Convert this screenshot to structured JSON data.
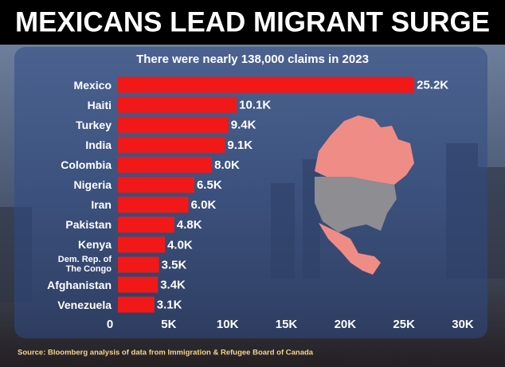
{
  "chart_data": {
    "type": "bar",
    "orientation": "horizontal",
    "title": "MEXICANS LEAD MIGRANT SURGE",
    "subtitle": "There were nearly 138,000 claims in 2023",
    "categories": [
      "Mexico",
      "Haiti",
      "Turkey",
      "India",
      "Colombia",
      "Nigeria",
      "Iran",
      "Pakistan",
      "Kenya",
      "Dem. Rep. of The Congo",
      "Afghanistan",
      "Venezuela"
    ],
    "values": [
      25200,
      10100,
      9400,
      9100,
      8000,
      6500,
      6000,
      4800,
      4000,
      3500,
      3400,
      3100
    ],
    "value_labels": [
      "25.2K",
      "10.1K",
      "9.4K",
      "9.1K",
      "8.0K",
      "6.5K",
      "6.0K",
      "4.8K",
      "4.0K",
      "3.5K",
      "3.4K",
      "3.1K"
    ],
    "color": "#f21818",
    "xlim": [
      0,
      30000
    ],
    "xticks": [
      0,
      {
        "value": 5000,
        "label": "5K"
      },
      {
        "value": 10000,
        "label": "10K"
      },
      {
        "value": 15000,
        "label": "15K"
      },
      {
        "value": 20000,
        "label": "20K"
      },
      {
        "value": 25000,
        "label": "25K"
      },
      {
        "value": 30000,
        "label": "30K"
      }
    ],
    "source": "Source: Bloomberg analysis of data from Immigration & Refugee Board of Canada"
  }
}
